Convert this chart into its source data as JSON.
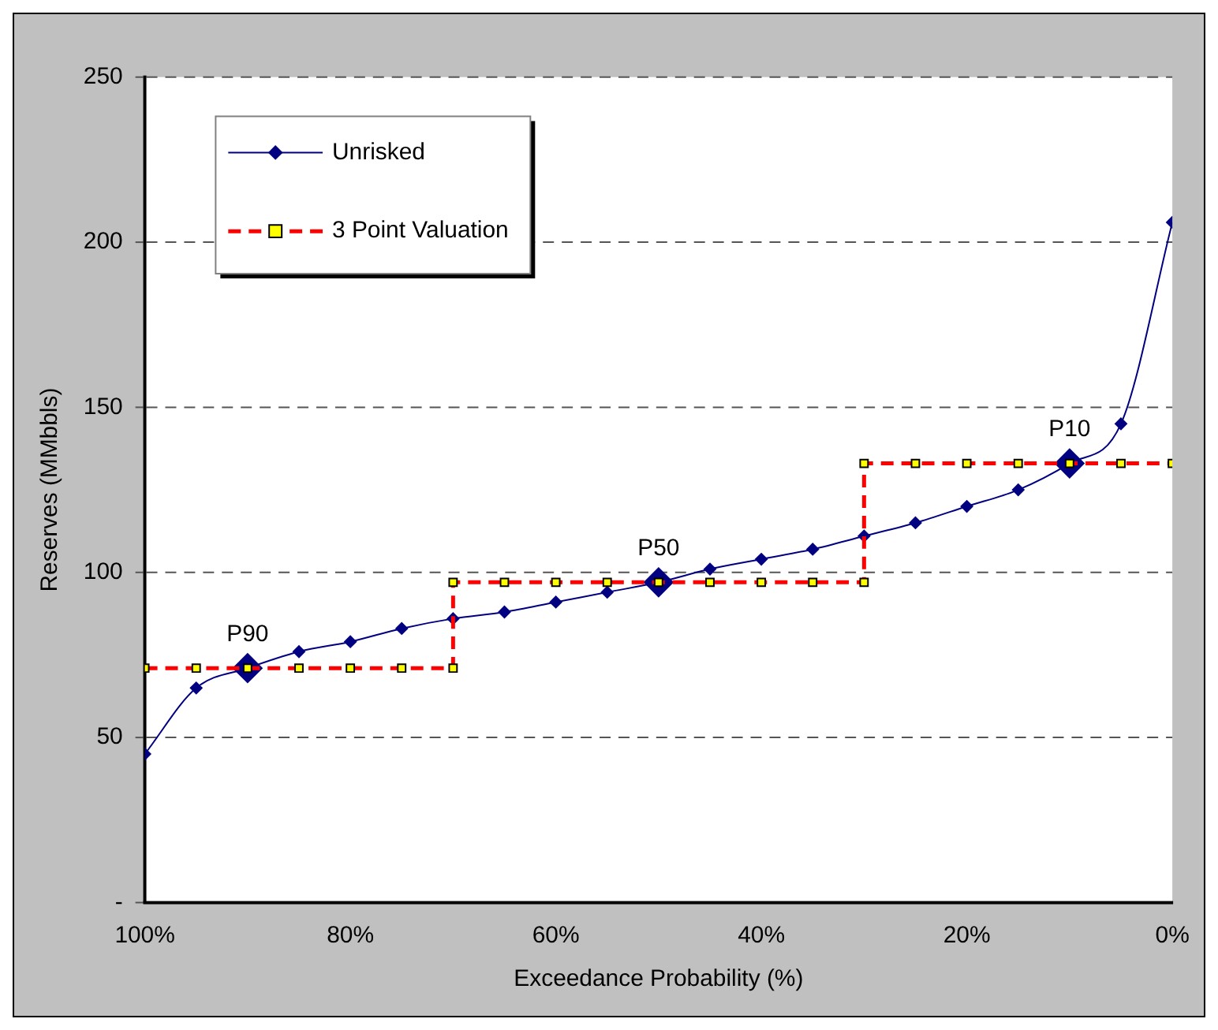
{
  "chart_data": {
    "type": "line",
    "xlabel": "Exceedance Probability (%)",
    "ylabel": "Reserves (MMbbls)",
    "xlim": [
      100,
      0
    ],
    "xticks": [
      {
        "value": 100,
        "label": "100%"
      },
      {
        "value": 80,
        "label": "80%"
      },
      {
        "value": 60,
        "label": "60%"
      },
      {
        "value": 40,
        "label": "40%"
      },
      {
        "value": 20,
        "label": "20%"
      },
      {
        "value": 0,
        "label": "0%"
      }
    ],
    "ylim": [
      0,
      250
    ],
    "yticks": [
      {
        "value": 0,
        "label": "-"
      },
      50,
      100,
      150,
      200,
      250
    ],
    "grid": "y",
    "legend": "top left",
    "series": [
      {
        "name": "Unrisked",
        "color": "#000080",
        "marker": "diamond",
        "line_style": "solid",
        "x": [
          100,
          95,
          90,
          85,
          80,
          75,
          70,
          65,
          60,
          55,
          50,
          45,
          40,
          35,
          30,
          25,
          20,
          15,
          10,
          5,
          0
        ],
        "values": [
          45,
          65,
          71,
          76,
          79,
          83,
          86,
          88,
          91,
          94,
          97,
          101,
          104,
          107,
          111,
          115,
          120,
          125,
          133,
          145,
          206
        ]
      },
      {
        "name": "3 Point Valuation",
        "color": "#ff0000",
        "marker": "square",
        "line_style": "dashed",
        "x": [
          100,
          95,
          90,
          85,
          80,
          75,
          70,
          70,
          65,
          60,
          55,
          50,
          45,
          40,
          35,
          30,
          30,
          25,
          20,
          15,
          10,
          5,
          0
        ],
        "values": [
          71,
          71,
          71,
          71,
          71,
          71,
          71,
          97,
          97,
          97,
          97,
          97,
          97,
          97,
          97,
          97,
          133,
          133,
          133,
          133,
          133,
          133,
          133
        ]
      }
    ],
    "annotations": [
      {
        "text": "P90",
        "x": 90,
        "y": 71
      },
      {
        "text": "P50",
        "x": 50,
        "y": 97
      },
      {
        "text": "P10",
        "x": 10,
        "y": 133
      }
    ]
  }
}
